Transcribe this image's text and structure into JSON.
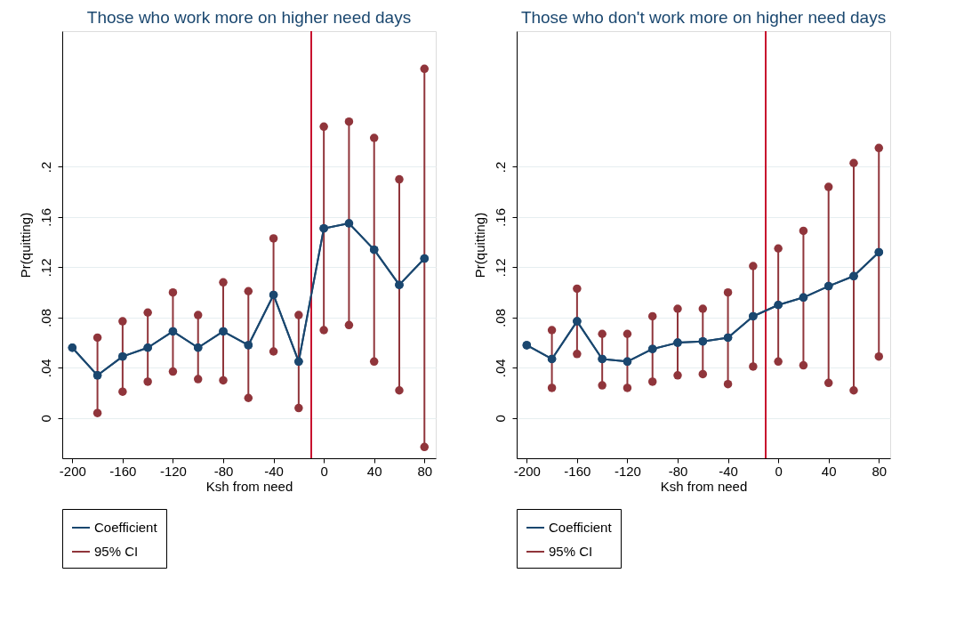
{
  "chart_data": [
    {
      "type": "line",
      "title": "Those who work more on higher need days",
      "xlabel": "Ksh from need",
      "ylabel": "Pr(quitting)",
      "x": [
        -200,
        -180,
        -160,
        -140,
        -120,
        -100,
        -80,
        -60,
        -40,
        -20,
        0,
        20,
        40,
        60,
        80
      ],
      "series": [
        {
          "name": "Coefficient",
          "color": "#1a476f",
          "values": [
            0.056,
            0.034,
            0.049,
            0.056,
            0.069,
            0.056,
            0.069,
            0.058,
            0.098,
            0.045,
            0.151,
            0.155,
            0.134,
            0.106,
            0.127
          ],
          "errors": [
            null,
            [
              0.004,
              0.064
            ],
            [
              0.021,
              0.077
            ],
            [
              0.029,
              0.084
            ],
            [
              0.037,
              0.1
            ],
            [
              0.031,
              0.082
            ],
            [
              0.03,
              0.108
            ],
            [
              0.016,
              0.101
            ],
            0.045,
            [
              0.008,
              0.082
            ],
            0.081,
            [
              0.074,
              0.236
            ],
            0.089,
            [
              0.022,
              0.19
            ],
            [
              -0.023,
              0.278
            ]
          ]
        },
        {
          "name": "95% CI",
          "type": "scatter",
          "color": "#90353b",
          "x": [
            -180,
            -180,
            -160,
            -160,
            -140,
            -140,
            -120,
            -120,
            -100,
            -100,
            -80,
            -80,
            -60,
            -60,
            -40,
            -40,
            -20,
            -20,
            0,
            0,
            20,
            20,
            40,
            40,
            60,
            60,
            80,
            80
          ],
          "values": [
            0.004,
            0.064,
            0.021,
            0.077,
            0.029,
            0.084,
            0.037,
            0.1,
            0.031,
            0.082,
            0.03,
            0.108,
            0.016,
            0.101,
            0.053,
            0.143,
            0.008,
            0.082,
            0.07,
            0.232,
            0.074,
            0.236,
            0.045,
            0.223,
            0.022,
            0.19,
            -0.023,
            0.278
          ]
        }
      ],
      "xlim": [
        -208,
        89
      ],
      "xticks": [
        -200,
        -160,
        -120,
        -80,
        -40,
        0,
        40,
        80
      ],
      "ylim": [
        -0.032,
        0.308
      ],
      "yticks": [
        {
          "value": 0,
          "label": "0"
        },
        {
          "value": 0.04,
          "label": ".04"
        },
        {
          "value": 0.08,
          "label": ".08"
        },
        {
          "value": 0.12,
          "label": ".12"
        },
        {
          "value": 0.16,
          "label": ".16"
        },
        {
          "value": 0.2,
          "label": ".2"
        }
      ],
      "ref_lines": [
        {
          "axis": "x",
          "value": -10,
          "color": "#c8102e"
        }
      ],
      "grid": "y",
      "legend": "bottom",
      "marker": "circle",
      "line_style": "solid"
    },
    {
      "type": "line",
      "title": "Those who don't work more on higher need days",
      "xlabel": "Ksh from need",
      "ylabel": "Pr(quitting)",
      "x": [
        -200,
        -180,
        -160,
        -140,
        -120,
        -100,
        -80,
        -60,
        -40,
        -20,
        0,
        20,
        40,
        60,
        80
      ],
      "series": [
        {
          "name": "Coefficient",
          "color": "#1a476f",
          "values": [
            0.058,
            0.047,
            0.077,
            0.047,
            0.045,
            0.055,
            0.06,
            0.061,
            0.064,
            0.081,
            0.09,
            0.096,
            0.105,
            0.113,
            0.132
          ],
          "errors": [
            null,
            0.023,
            [
              0.051,
              0.103
            ],
            [
              0.026,
              0.067
            ],
            [
              0.024,
              0.067
            ],
            [
              0.029,
              0.081
            ],
            [
              0.034,
              0.087
            ],
            0.026,
            [
              0.027,
              0.1
            ],
            0.04,
            [
              0.045,
              0.135
            ],
            [
              0.042,
              0.149
            ],
            [
              0.028,
              0.184
            ],
            [
              0.022,
              0.203
            ],
            [
              0.049,
              0.215
            ]
          ]
        },
        {
          "name": "95% CI",
          "type": "scatter",
          "color": "#90353b",
          "x": [
            -180,
            -180,
            -160,
            -160,
            -140,
            -140,
            -120,
            -120,
            -100,
            -100,
            -80,
            -80,
            -60,
            -60,
            -40,
            -40,
            -20,
            -20,
            0,
            0,
            20,
            20,
            40,
            40,
            60,
            60,
            80,
            80
          ],
          "values": [
            0.024,
            0.07,
            0.051,
            0.103,
            0.026,
            0.067,
            0.024,
            0.067,
            0.029,
            0.081,
            0.034,
            0.087,
            0.035,
            0.087,
            0.027,
            0.1,
            0.041,
            0.121,
            0.045,
            0.135,
            0.042,
            0.149,
            0.028,
            0.184,
            0.022,
            0.203,
            0.049,
            0.215
          ]
        }
      ],
      "xlim": [
        -208,
        89
      ],
      "xticks": [
        -200,
        -160,
        -120,
        -80,
        -40,
        0,
        40,
        80
      ],
      "ylim": [
        -0.032,
        0.308
      ],
      "yticks": [
        {
          "value": 0,
          "label": "0"
        },
        {
          "value": 0.04,
          "label": ".04"
        },
        {
          "value": 0.08,
          "label": ".08"
        },
        {
          "value": 0.12,
          "label": ".12"
        },
        {
          "value": 0.16,
          "label": ".16"
        },
        {
          "value": 0.2,
          "label": ".2"
        }
      ],
      "ref_lines": [
        {
          "axis": "x",
          "value": -10,
          "color": "#c8102e"
        }
      ],
      "grid": "y",
      "legend": "bottom",
      "marker": "circle",
      "line_style": "solid"
    }
  ]
}
